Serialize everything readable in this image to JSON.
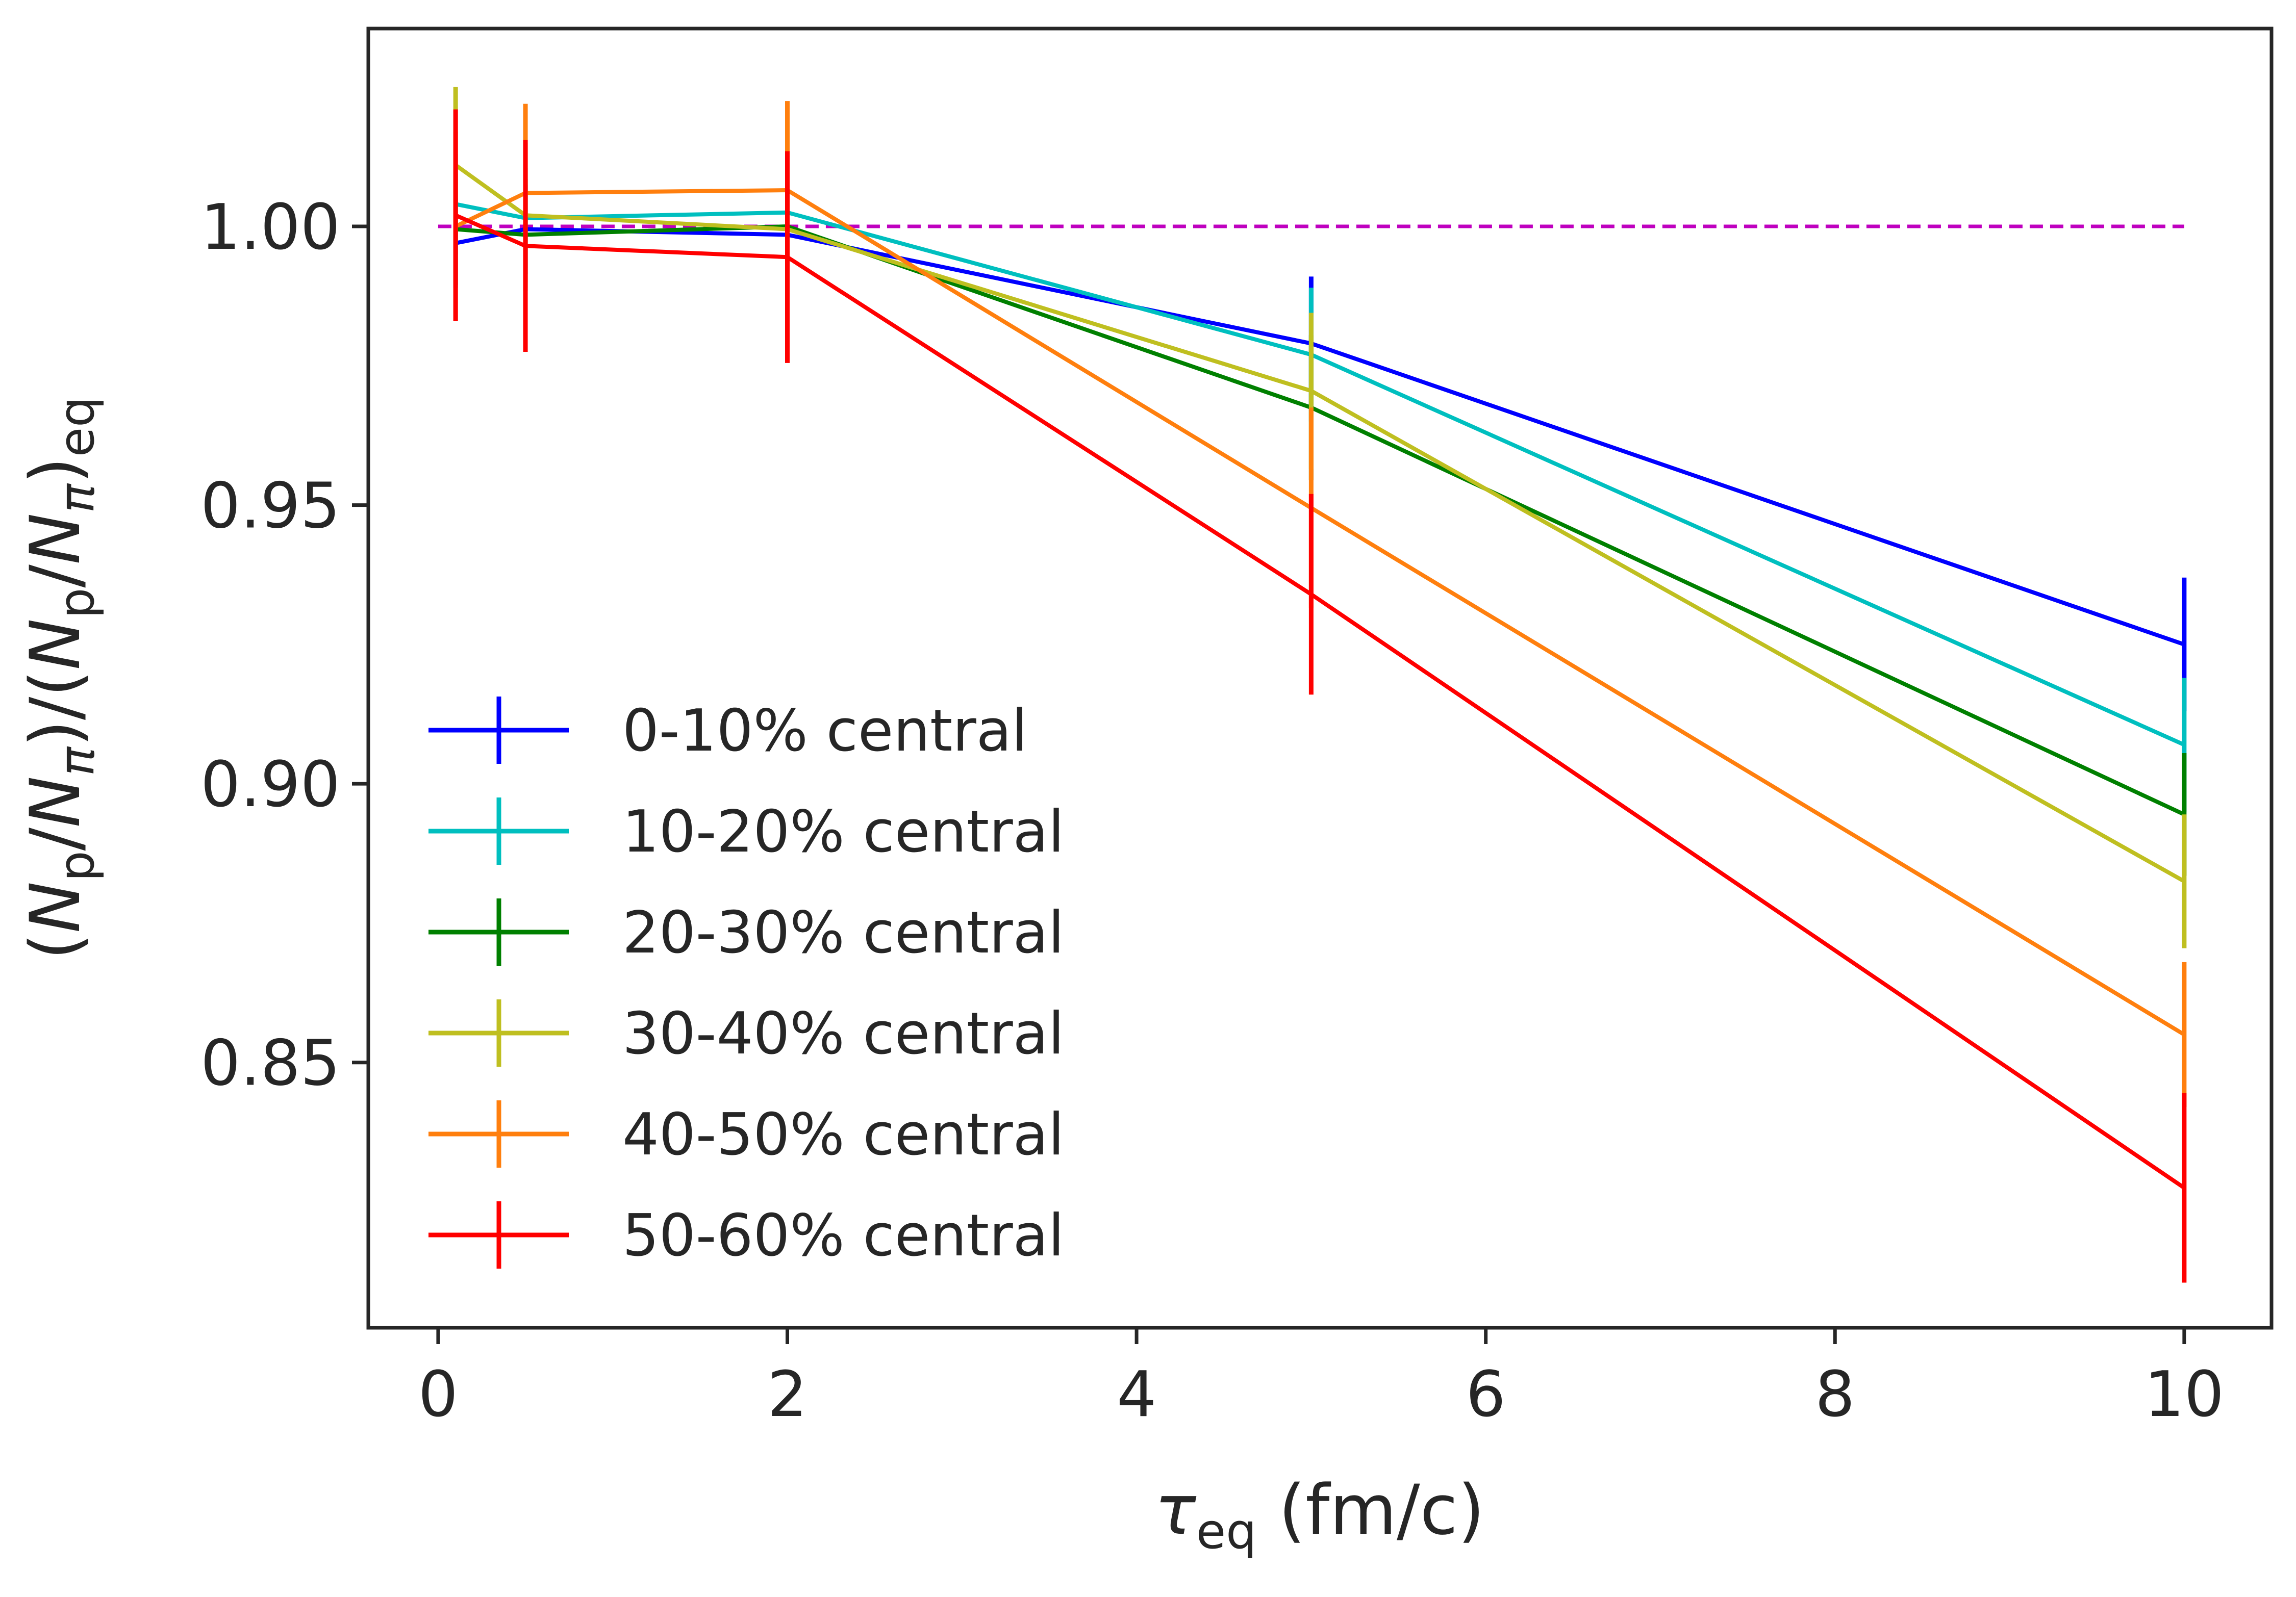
{
  "chart_data": {
    "type": "line",
    "title": "",
    "xlabel": {
      "symbol": "τ",
      "sub": "eq",
      "rest": " (fm/c)"
    },
    "ylabel": {
      "parts": [
        {
          "t": "(",
          "s": "n"
        },
        {
          "t": "N",
          "s": "i"
        },
        {
          "t": "p",
          "s": "sub"
        },
        {
          "t": "/",
          "s": "n"
        },
        {
          "t": "N",
          "s": "i"
        },
        {
          "t": "π",
          "s": "sub-i"
        },
        {
          "t": ")/(",
          "s": "n"
        },
        {
          "t": "N",
          "s": "i"
        },
        {
          "t": "p",
          "s": "sub"
        },
        {
          "t": "/",
          "s": "n"
        },
        {
          "t": "N",
          "s": "i"
        },
        {
          "t": "π",
          "s": "sub-i"
        },
        {
          "t": ")",
          "s": "n"
        },
        {
          "t": "eq",
          "s": "sub"
        }
      ]
    },
    "xlim": [
      -0.4,
      10.5
    ],
    "ylim": [
      0.8024,
      1.0355
    ],
    "xticks": [
      0,
      2,
      4,
      6,
      8,
      10
    ],
    "xtick_labels": [
      "0",
      "2",
      "4",
      "6",
      "8",
      "10"
    ],
    "yticks": [
      0.85,
      0.9,
      0.95,
      1.0
    ],
    "ytick_labels": [
      "0.85",
      "0.90",
      "0.95",
      "1.00"
    ],
    "grid": false,
    "legend_position": "lower-left",
    "reference_line": {
      "y": 1.0,
      "x_range": [
        0,
        10
      ],
      "style": "dashed",
      "color": "#bf00bf"
    },
    "x": [
      0.1,
      0.5,
      2,
      5,
      10
    ],
    "series": [
      {
        "name": "0-10% central",
        "color": "#0000ff",
        "values": [
          0.997,
          0.9995,
          0.9985,
          0.979,
          0.925
        ],
        "errors": [
          0.008,
          0.008,
          0.008,
          0.012,
          0.012
        ]
      },
      {
        "name": "10-20% central",
        "color": "#00bfbf",
        "values": [
          1.004,
          1.0015,
          1.0025,
          0.977,
          0.907
        ],
        "errors": [
          0.009,
          0.009,
          0.009,
          0.012,
          0.012
        ]
      },
      {
        "name": "20-30% central",
        "color": "#008000",
        "values": [
          0.9995,
          0.9985,
          1.0,
          0.9675,
          0.8945
        ],
        "errors": [
          0.01,
          0.01,
          0.01,
          0.013,
          0.011
        ]
      },
      {
        "name": "30-40% central",
        "color": "#bfbf20",
        "values": [
          1.011,
          1.002,
          0.9995,
          0.9705,
          0.8825
        ],
        "errors": [
          0.014,
          0.013,
          0.013,
          0.014,
          0.012
        ]
      },
      {
        "name": "40-50% central",
        "color": "#ff7f0e",
        "values": [
          1.0,
          1.006,
          1.0065,
          0.9495,
          0.855
        ],
        "errors": [
          0.017,
          0.016,
          0.016,
          0.018,
          0.013
        ]
      },
      {
        "name": "50-60% central",
        "color": "#ff0000",
        "values": [
          1.002,
          0.9965,
          0.9945,
          0.934,
          0.8275
        ],
        "errors": [
          0.019,
          0.019,
          0.019,
          0.018,
          0.017
        ]
      }
    ]
  }
}
